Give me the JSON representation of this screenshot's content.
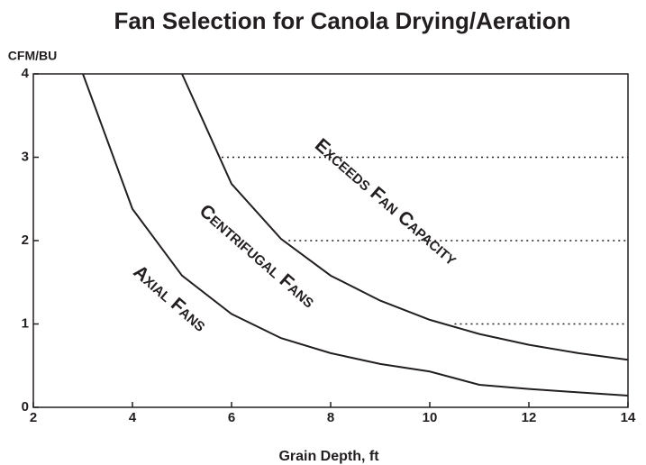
{
  "chart_data": {
    "type": "line",
    "title": "Fan Selection for Canola Drying/Aeration",
    "ylabel": "CFM/BU",
    "xlabel": "Grain Depth, ft",
    "series": [
      {
        "name": "Axial Fans",
        "color": "#231f20",
        "x": [
          3,
          4,
          5,
          6,
          7,
          8,
          9,
          10,
          11,
          12,
          13,
          14
        ],
        "values": [
          4,
          2.38,
          1.58,
          1.12,
          0.83,
          0.65,
          0.52,
          0.43,
          0.27,
          0.22,
          0.18,
          0.14
        ]
      },
      {
        "name": "Centrifugal Fans",
        "color": "#231f20",
        "x": [
          5,
          6,
          7,
          8,
          9,
          10,
          11,
          12,
          13,
          14
        ],
        "values": [
          4,
          2.68,
          2.02,
          1.58,
          1.28,
          1.05,
          0.88,
          0.75,
          0.65,
          0.57
        ]
      }
    ],
    "annotations": [
      "Exceeds Fan Capacity"
    ],
    "reference_lines": [
      {
        "y": 3,
        "x_start": 5.8
      },
      {
        "y": 2,
        "x_start": 7.15
      },
      {
        "y": 1,
        "x_start": 10.5
      }
    ],
    "xlim": [
      2,
      14
    ],
    "xticks": [
      2,
      4,
      6,
      8,
      10,
      12,
      14
    ],
    "ylim": [
      0,
      4
    ],
    "yticks": [
      0,
      1,
      2,
      3,
      4
    ],
    "grid": false
  }
}
